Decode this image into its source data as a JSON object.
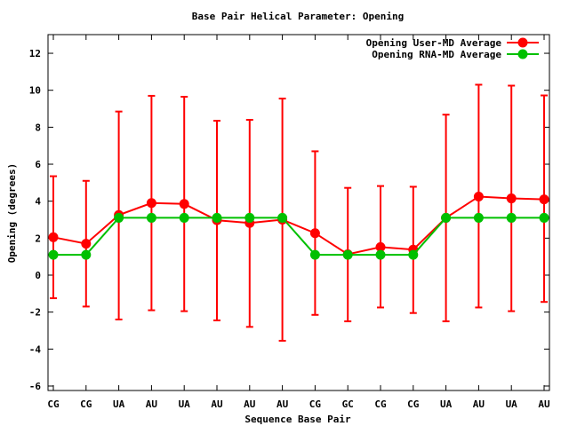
{
  "chart_data": {
    "type": "line",
    "title": "Base Pair Helical Parameter: Opening",
    "xlabel": "Sequence Base Pair",
    "ylabel": "Opening (degrees)",
    "ylim": [
      -6.5,
      13
    ],
    "yticks": [
      -6,
      -4,
      -2,
      0,
      2,
      4,
      6,
      8,
      10,
      12
    ],
    "categories": [
      "CG",
      "CG",
      "UA",
      "AU",
      "UA",
      "AU",
      "AU",
      "AU",
      "CG",
      "GC",
      "CG",
      "CG",
      "UA",
      "AU",
      "UA",
      "AU"
    ],
    "legend_position": "top-right",
    "grid": false,
    "series": [
      {
        "name": "Opening User-MD Average",
        "color": "#ff0000",
        "values": [
          2.05,
          1.7,
          3.25,
          3.9,
          3.85,
          2.97,
          2.82,
          3.0,
          2.27,
          1.13,
          1.52,
          1.38,
          3.1,
          4.25,
          4.15,
          4.1
        ],
        "err_low": [
          -1.25,
          -1.7,
          -2.4,
          -1.9,
          -1.95,
          -2.45,
          -2.8,
          -3.55,
          -2.15,
          -2.5,
          -1.75,
          -2.05,
          -2.5,
          -1.75,
          -1.95,
          -1.45
        ],
        "err_high": [
          5.35,
          5.1,
          8.85,
          9.7,
          9.65,
          8.35,
          8.4,
          9.55,
          6.7,
          4.72,
          4.82,
          4.78,
          8.68,
          10.3,
          10.25,
          9.72
        ]
      },
      {
        "name": "Opening RNA-MD Average",
        "color": "#00c000",
        "values": [
          1.1,
          1.1,
          3.1,
          3.1,
          3.1,
          3.1,
          3.1,
          3.1,
          1.1,
          1.1,
          1.1,
          1.1,
          3.1,
          3.1,
          3.1,
          3.1
        ]
      }
    ]
  }
}
